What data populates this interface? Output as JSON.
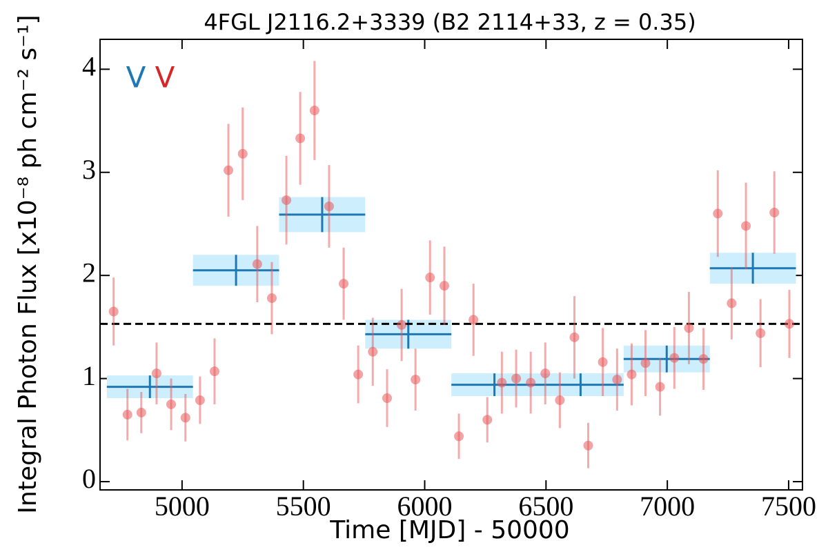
{
  "chart_data": {
    "type": "scatter",
    "title": "4FGL J2116.2+3339 (B2 2114+33, z = 0.35)",
    "x_label": "Time [MJD] - 50000",
    "y_label": "Integral Photon Flux [x10⁻⁸ ph cm⁻² s⁻¹]",
    "xlim": [
      4662,
      7557
    ],
    "ylim": [
      -0.08,
      4.29
    ],
    "xticks": [
      5000,
      5500,
      6000,
      6500,
      7000,
      7500
    ],
    "yticks": [
      0,
      1,
      2,
      3,
      4
    ],
    "annotations": [
      {
        "text": "V",
        "color": "#1f77b4"
      },
      {
        "text": "V",
        "color": "#d62728"
      }
    ],
    "reference_line": {
      "value": 1.53,
      "color": "#000000"
    },
    "series": [
      {
        "color": "#e8575a",
        "x": [
          4718,
          4775,
          4832,
          4895,
          4955,
          5014,
          5074,
          5134,
          5191,
          5250,
          5310,
          5370,
          5430,
          5487,
          5546,
          5606,
          5666,
          5726,
          5786,
          5845,
          5905,
          5962,
          6022,
          6081,
          6141,
          6201,
          6258,
          6318,
          6377,
          6437,
          6497,
          6557,
          6617,
          6674,
          6734,
          6793,
          6853,
          6910,
          6970,
          7029,
          7089,
          7149,
          7208,
          7265,
          7324,
          7384,
          7441,
          7503
        ],
        "values": [
          1.65,
          0.65,
          0.67,
          1.05,
          0.75,
          0.62,
          0.79,
          1.07,
          3.02,
          3.18,
          2.11,
          1.78,
          2.73,
          3.33,
          3.6,
          2.67,
          1.92,
          1.04,
          1.26,
          0.81,
          1.52,
          0.99,
          1.98,
          1.9,
          0.44,
          1.57,
          0.6,
          0.96,
          1.0,
          0.96,
          1.05,
          0.79,
          1.4,
          0.35,
          1.16,
          0.99,
          1.04,
          1.15,
          0.92,
          1.2,
          1.49,
          1.19,
          2.6,
          1.73,
          2.48,
          1.44,
          2.61,
          1.53
        ],
        "errors": [
          0.33,
          0.25,
          0.2,
          0.3,
          0.25,
          0.23,
          0.23,
          0.32,
          0.45,
          0.45,
          0.37,
          0.35,
          0.43,
          0.45,
          0.48,
          0.4,
          0.35,
          0.28,
          0.33,
          0.28,
          0.35,
          0.3,
          0.36,
          0.38,
          0.22,
          0.35,
          0.22,
          0.3,
          0.28,
          0.3,
          0.3,
          0.27,
          0.4,
          0.22,
          0.33,
          0.3,
          0.3,
          0.32,
          0.28,
          0.3,
          0.35,
          0.3,
          0.42,
          0.35,
          0.42,
          0.33,
          0.4,
          0.33
        ]
      }
    ],
    "blocks": {
      "color": "#1f77b4",
      "band_color": "#cdeefc",
      "x_start": [
        4690,
        5045,
        5400,
        5755,
        6110,
        6465,
        6820,
        7175
      ],
      "x_end": [
        5045,
        5400,
        5755,
        6110,
        6465,
        6820,
        7175,
        7530
      ],
      "values": [
        0.92,
        2.05,
        2.59,
        1.43,
        0.94,
        0.94,
        1.19,
        2.07
      ],
      "errors": [
        0.11,
        0.15,
        0.17,
        0.14,
        0.11,
        0.11,
        0.13,
        0.15
      ]
    }
  }
}
